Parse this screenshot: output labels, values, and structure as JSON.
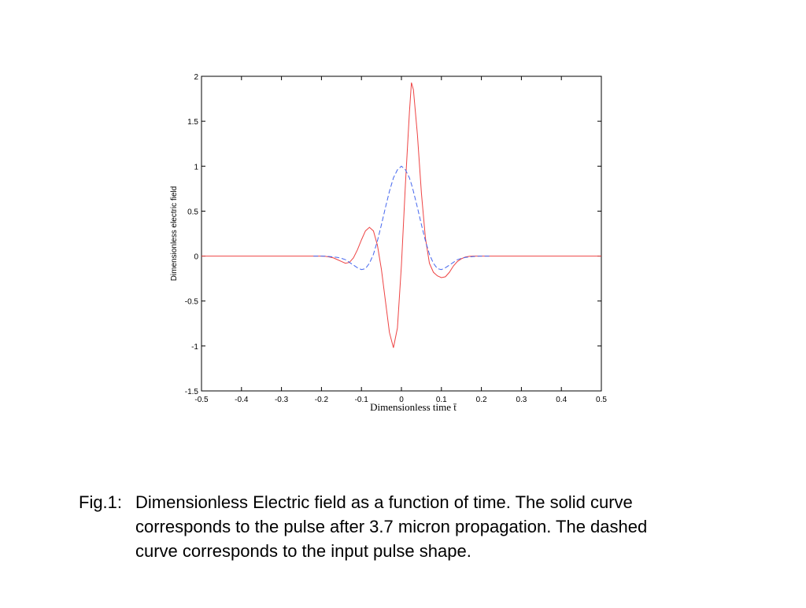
{
  "chart_data": {
    "type": "line",
    "xlabel": "Dimensionless time t̄",
    "ylabel": "Dimensionless electric field",
    "x": [
      -0.5,
      -0.24,
      -0.23,
      -0.22,
      -0.21,
      -0.2,
      -0.19,
      -0.18,
      -0.17,
      -0.16,
      -0.15,
      -0.14,
      -0.13,
      -0.12,
      -0.11,
      -0.1,
      -0.09,
      -0.08,
      -0.07,
      -0.06,
      -0.05,
      -0.04,
      -0.03,
      -0.02,
      -0.01,
      0,
      0.01,
      0.02,
      0.025,
      0.03,
      0.04,
      0.05,
      0.06,
      0.07,
      0.08,
      0.09,
      0.1,
      0.11,
      0.12,
      0.13,
      0.14,
      0.15,
      0.16,
      0.17,
      0.18,
      0.19,
      0.2,
      0.21,
      0.22,
      0.23,
      0.24,
      0.5
    ],
    "series": [
      {
        "color": "#4466ee",
        "dashed": true,
        "values": [
          null,
          null,
          null,
          0,
          0,
          0,
          -0.002,
          -0.005,
          -0.01,
          -0.015,
          -0.025,
          -0.04,
          -0.07,
          -0.1,
          -0.13,
          -0.15,
          -0.14,
          -0.08,
          0.02,
          0.17,
          0.35,
          0.54,
          0.72,
          0.87,
          0.96,
          1,
          0.96,
          0.87,
          0.8,
          0.72,
          0.54,
          0.35,
          0.17,
          0.02,
          -0.08,
          -0.14,
          -0.15,
          -0.13,
          -0.1,
          -0.07,
          -0.04,
          -0.025,
          -0.015,
          -0.01,
          -0.005,
          -0.002,
          0,
          0,
          0,
          null,
          null,
          null
        ]
      },
      {
        "color": "#ee4444",
        "dashed": false,
        "values": [
          0,
          0,
          0,
          0,
          0,
          0,
          -0.003,
          -0.01,
          -0.02,
          -0.04,
          -0.06,
          -0.08,
          -0.07,
          -0.02,
          0.07,
          0.18,
          0.28,
          0.32,
          0.28,
          0.12,
          -0.15,
          -0.5,
          -0.85,
          -1.02,
          -0.8,
          -0.1,
          0.8,
          1.6,
          1.93,
          1.85,
          1.35,
          0.7,
          0.2,
          -0.08,
          -0.18,
          -0.22,
          -0.24,
          -0.23,
          -0.18,
          -0.11,
          -0.06,
          -0.03,
          -0.01,
          -0.003,
          0,
          0,
          0,
          0,
          0,
          0,
          0,
          0
        ]
      }
    ],
    "xlim": [
      -0.5,
      0.5
    ],
    "xticks": [
      -0.5,
      -0.4,
      -0.3,
      -0.2,
      -0.1,
      0,
      0.1,
      0.2,
      0.3,
      0.4,
      0.5
    ],
    "ylim": [
      -1.5,
      2
    ],
    "yticks": [
      -1.5,
      -1,
      -0.5,
      0,
      0.5,
      1,
      1.5,
      2
    ],
    "caption_label": "Fig.1:",
    "caption_lines": [
      "Dimensionless Electric field as a function of time. The solid curve",
      "corresponds to the pulse after 3.7 micron propagation. The dashed",
      "curve corresponds to the input pulse shape."
    ]
  }
}
